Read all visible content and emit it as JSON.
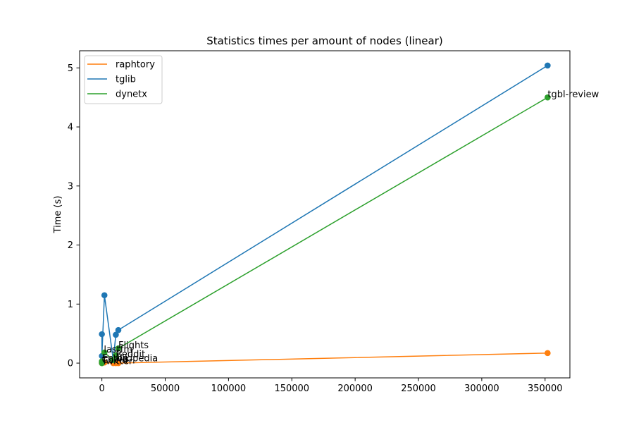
{
  "chart_data": {
    "type": "line",
    "title": "Statistics times per amount of nodes (linear)",
    "xlabel": "",
    "ylabel": "Time (s)",
    "xlim": [
      -17600,
      369600
    ],
    "ylim": [
      -0.25,
      5.29
    ],
    "x_ticks": [
      0,
      50000,
      100000,
      150000,
      200000,
      250000,
      300000,
      350000
    ],
    "x_tick_labels": [
      "0",
      "50000",
      "100000",
      "150000",
      "200000",
      "250000",
      "300000",
      "350000"
    ],
    "y_ticks": [
      0,
      1,
      2,
      3,
      4,
      5
    ],
    "y_tick_labels": [
      "0",
      "1",
      "2",
      "3",
      "4",
      "5"
    ],
    "grid": false,
    "legend_position": "upper-left",
    "series": [
      {
        "name": "raphtory",
        "color": "#ff7f0e",
        "points": [
          [
            0,
            0.0
          ],
          [
            0,
            0.005
          ],
          [
            2000,
            0.01
          ],
          [
            9000,
            0.0
          ],
          [
            11000,
            0.0
          ],
          [
            13000,
            0.0
          ],
          [
            352000,
            0.17
          ]
        ]
      },
      {
        "name": "tglib",
        "color": "#1f77b4",
        "points": [
          [
            0,
            0.49
          ],
          [
            0,
            0.12
          ],
          [
            2000,
            1.15
          ],
          [
            9000,
            0.05
          ],
          [
            11000,
            0.48
          ],
          [
            13000,
            0.56
          ],
          [
            352000,
            5.04
          ]
        ]
      },
      {
        "name": "dynetx",
        "color": "#2ca02c",
        "points": [
          [
            0,
            0.0
          ],
          [
            0,
            0.03
          ],
          [
            2000,
            0.18
          ],
          [
            9000,
            0.05
          ],
          [
            11000,
            0.13
          ],
          [
            13000,
            0.25
          ],
          [
            352000,
            4.5
          ]
        ]
      }
    ],
    "annotations": [
      {
        "text": "tgbl-review",
        "x": 352000,
        "y": 4.5
      },
      {
        "text": "Flights",
        "x": 13000,
        "y": 0.25
      },
      {
        "text": "lastfm",
        "x": 1500,
        "y": 0.18
      },
      {
        "text": "Reddit",
        "x": 11000,
        "y": 0.1
      },
      {
        "text": "Wikipedia",
        "x": 9000,
        "y": 0.03
      },
      {
        "text": "Enron",
        "x": 0,
        "y": 0.03
      },
      {
        "text": "Covid",
        "x": 0,
        "y": 0.0
      },
      {
        "text": "Twitter",
        "x": 0,
        "y": -0.02
      }
    ]
  }
}
